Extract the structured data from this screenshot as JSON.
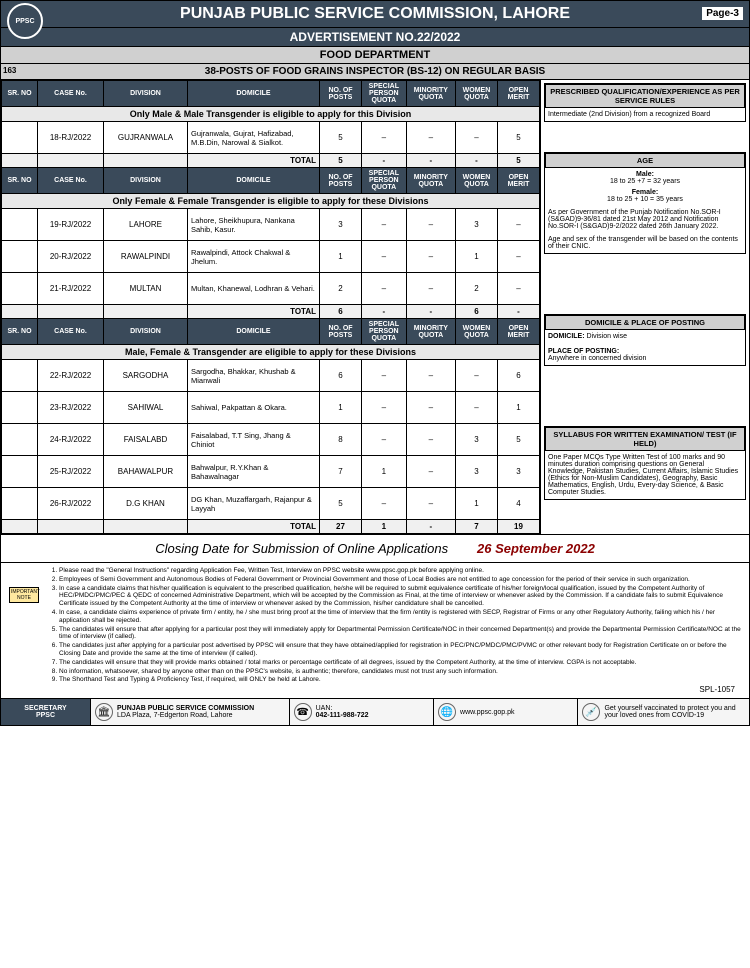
{
  "header": {
    "title": "PUNJAB PUBLIC SERVICE COMMISSION, LAHORE",
    "page": "Page-3",
    "logo": "PPSC",
    "adv": "ADVERTISEMENT NO.22/2022",
    "dept": "FOOD DEPARTMENT",
    "posts_title": "38-POSTS OF FOOD GRAINS INSPECTOR (BS-12) ON REGULAR BASIS",
    "sr_main": "163"
  },
  "table_headers": {
    "sr": "SR. NO",
    "case": "CASE No.",
    "division": "DIVISION",
    "domicile": "DOMICILE",
    "posts": "NO. OF POSTS",
    "special": "SPECIAL PERSON QUOTA",
    "minority": "MINORITY QUOTA",
    "women": "WOMEN QUOTA",
    "merit": "OPEN MERIT"
  },
  "sections": [
    {
      "eligibility": "Only Male & Male Transgender is eligible to apply for this Division",
      "rows": [
        {
          "case": "18-RJ/2022",
          "division": "GUJRANWALA",
          "domicile": "Gujranwala, Gujrat, Hafizabad, M.B.Din, Narowal & Sialkot.",
          "posts": "5",
          "special": "–",
          "minority": "–",
          "women": "–",
          "merit": "5"
        }
      ],
      "total": {
        "label": "TOTAL",
        "posts": "5",
        "special": "-",
        "minority": "-",
        "women": "-",
        "merit": "5"
      }
    },
    {
      "eligibility": "Only Female & Female Transgender is eligible to apply for these Divisions",
      "rows": [
        {
          "case": "19-RJ/2022",
          "division": "LAHORE",
          "domicile": "Lahore, Sheikhupura, Nankana Sahib, Kasur.",
          "posts": "3",
          "special": "–",
          "minority": "–",
          "women": "3",
          "merit": "–"
        },
        {
          "case": "20-RJ/2022",
          "division": "RAWALPINDI",
          "domicile": "Rawalpindi, Attock Chakwal & Jhelum.",
          "posts": "1",
          "special": "–",
          "minority": "–",
          "women": "1",
          "merit": "–"
        },
        {
          "case": "21-RJ/2022",
          "division": "MULTAN",
          "domicile": "Multan, Khanewal, Lodhran & Vehari.",
          "posts": "2",
          "special": "–",
          "minority": "–",
          "women": "2",
          "merit": "–"
        }
      ],
      "total": {
        "label": "TOTAL",
        "posts": "6",
        "special": "-",
        "minority": "-",
        "women": "6",
        "merit": "-"
      }
    },
    {
      "eligibility": "Male, Female & Transgender are eligible to apply for these Divisions",
      "rows": [
        {
          "case": "22-RJ/2022",
          "division": "SARGODHA",
          "domicile": "Sargodha, Bhakkar, Khushab & Mianwali",
          "posts": "6",
          "special": "–",
          "minority": "–",
          "women": "–",
          "merit": "6"
        },
        {
          "case": "23-RJ/2022",
          "division": "SAHIWAL",
          "domicile": "Sahiwal, Pakpattan & Okara.",
          "posts": "1",
          "special": "–",
          "minority": "–",
          "women": "–",
          "merit": "1"
        },
        {
          "case": "24-RJ/2022",
          "division": "FAISALABD",
          "domicile": "Faisalabad, T.T Sing, Jhang & Chiniot",
          "posts": "8",
          "special": "–",
          "minority": "–",
          "women": "3",
          "merit": "5"
        },
        {
          "case": "25-RJ/2022",
          "division": "BAHAWALPUR",
          "domicile": "Bahwalpur, R.Y.Khan & Bahawalnagar",
          "posts": "7",
          "special": "1",
          "minority": "–",
          "women": "3",
          "merit": "3"
        },
        {
          "case": "26-RJ/2022",
          "division": "D.G KHAN",
          "domicile": "DG Khan, Muzaffargarh, Rajanpur & Layyah",
          "posts": "5",
          "special": "–",
          "minority": "–",
          "women": "1",
          "merit": "4"
        }
      ],
      "total": {
        "label": "TOTAL",
        "posts": "27",
        "special": "1",
        "minority": "-",
        "women": "7",
        "merit": "19"
      }
    }
  ],
  "sidebar": {
    "qual": {
      "title": "PRESCRIBED QUALIFICATION/EXPERIENCE AS PER SERVICE RULES",
      "body": "Intermediate (2nd Division) from a recognized Board"
    },
    "age": {
      "title": "AGE",
      "male_lbl": "Male:",
      "male": "18 to 25 +7 = 32 years",
      "female_lbl": "Female:",
      "female": "18 to 25 + 10 = 35 years",
      "note1": "As per Government of the Punjab Notification No.SOR-I (S&GAD)9-36/81 dated 21st May 2012 and Notification No.SOR-I (S&GAD)9-2/2022 dated 26th January 2022.",
      "note2": "Age and sex of the transgender will be based on the contents of their CNIC."
    },
    "domicile": {
      "title": "DOMICILE & PLACE OF POSTING",
      "dom_lbl": "DOMICILE:",
      "dom": "Division wise",
      "pop_lbl": "PLACE OF POSTING:",
      "pop": "Anywhere in concerned division"
    },
    "syllabus": {
      "title": "SYLLABUS FOR WRITTEN EXAMINATION/ TEST (IF HELD)",
      "body": "One Paper MCQs Type Written Test of 100 marks and 90 minutes duration comprising questions on General Knowledge, Pakistan Studies, Current Affairs, Islamic Studies (Ethics for Non-Muslim Candidates), Geography, Basic Mathematics, English, Urdu, Every-day Science, & Basic Computer Studies."
    }
  },
  "closing": {
    "label": "Closing Date for Submission of Online Applications",
    "date": "26 September 2022"
  },
  "instructions": {
    "note": "IMPORTANT NOTE",
    "items": [
      "Please read the \"General Instructions\" regarding Application Fee, Written Test, Interview on PPSC website www.ppsc.gop.pk before applying online.",
      "Employees of Semi Government and Autonomous Bodies of Federal Government or Provincial Government and those of Local Bodies are not entitled to age concession for the period of their service in such organization.",
      "In case a candidate claims that his/her qualification is equivalent to the prescribed qualification, he/she will be required to submit equivalence certificate of his/her foreign/local qualification, issued by the Competent Authority of HEC/PMDC/PMC/PEC & QEDC of concerned Administrative Department, which will be accepted by the Commission as Final, at the time of interview or whenever asked by the Commission. If a candidate fails to submit Equivalence Certificate issued by the Competent Authority at the time of interview or whenever asked by the Commission, his/her candidature shall be cancelled.",
      "In case, a candidate claims experience of private firm / entity, he / she must bring proof at the time of interview that the firm /entity is registered with SECP, Registrar of Firms or any other Regulatory Authority, failing which his / her application shall be rejected.",
      "The candidates will ensure that after applying for a particular post they will immediately apply for Departmental Permission Certificate/NOC in their concerned Department(s) and provide the Departmental Permission Certificate/NOC at the time of interview (if called).",
      "The candidates just after applying for a particular post advertised by PPSC will ensure that they have obtained/applied for registration in PEC/PNC/PMDC/PMC/PVMC or other relevant body for Registration Certificate on or before the Closing Date and provide the same at the time of interview (if called).",
      "The candidates will ensure that they will provide marks obtained / total marks or percentage certificate of all degrees, issued by the Competent Authority, at the time of interview. CGPA is not acceptable.",
      "No information, whatsoever, shared by anyone other than on the PPSC's website, is authentic; therefore, candidates must not trust any such information.",
      "The Shorthand Test and Typing & Proficiency Test, if required, will ONLY be held at Lahore."
    ],
    "spl": "SPL-1057"
  },
  "footer": {
    "secretary": "SECRETARY",
    "secretary2": "PPSC",
    "address": {
      "name": "PUNJAB PUBLIC SERVICE COMMISSION",
      "line": "LDA Plaza, 7-Edgerton Road, Lahore"
    },
    "uan_lbl": "UAN:",
    "uan": "042-111-988-722",
    "web": "www.ppsc.gop.pk",
    "vaccine": "Get yourself vaccinated to protect you and your loved ones from COVID-19"
  }
}
